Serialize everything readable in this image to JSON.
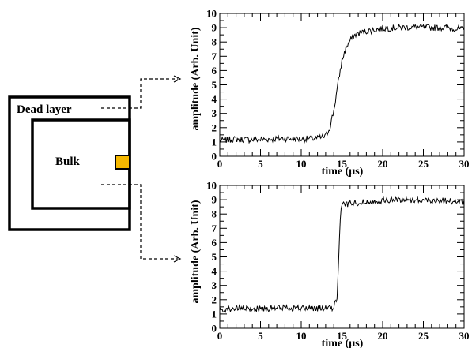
{
  "diagram": {
    "dead_layer_label": "Dead layer",
    "bulk_label": "Bulk",
    "electrode_color": "#f5b800"
  },
  "chart_data": [
    {
      "type": "line",
      "xlabel": "time (μs)",
      "ylabel": "amplitude (Arb. Unit)",
      "xlim": [
        0,
        30
      ],
      "ylim": [
        0,
        10
      ],
      "xticks": [
        0,
        5,
        10,
        15,
        20,
        25,
        30
      ],
      "yticks": [
        0,
        1,
        2,
        3,
        4,
        5,
        6,
        7,
        8,
        9,
        10
      ],
      "grid": false,
      "series": [
        {
          "x": [
            0,
            2,
            4,
            6,
            8,
            10,
            12,
            13,
            13.5,
            14,
            14.5,
            15,
            15.5,
            16,
            16.5,
            17,
            18,
            19,
            20,
            22,
            24,
            26,
            28,
            30
          ],
          "values": [
            1.1,
            1.2,
            1.15,
            1.2,
            1.25,
            1.2,
            1.25,
            1.4,
            2.0,
            3.2,
            5.0,
            6.7,
            7.6,
            8.1,
            8.45,
            8.6,
            8.75,
            8.85,
            8.95,
            9.0,
            9.05,
            9.0,
            9.0,
            8.85
          ]
        }
      ]
    },
    {
      "type": "line",
      "xlabel": "time (μs)",
      "ylabel": "amplitude (Arb. Unit)",
      "xlim": [
        0,
        30
      ],
      "ylim": [
        0,
        10
      ],
      "xticks": [
        0,
        5,
        10,
        15,
        20,
        25,
        30
      ],
      "yticks": [
        0,
        1,
        2,
        3,
        4,
        5,
        6,
        7,
        8,
        9,
        10
      ],
      "grid": false,
      "series": [
        {
          "x": [
            0,
            2,
            4,
            6,
            8,
            10,
            12,
            14,
            14.4,
            14.6,
            14.8,
            15,
            16,
            18,
            20,
            22,
            24,
            26,
            28,
            30
          ],
          "values": [
            1.3,
            1.4,
            1.35,
            1.4,
            1.45,
            1.4,
            1.4,
            1.4,
            2.2,
            5.0,
            7.8,
            8.65,
            8.75,
            8.85,
            8.95,
            9.0,
            9.0,
            8.95,
            8.95,
            8.8
          ]
        }
      ]
    }
  ]
}
